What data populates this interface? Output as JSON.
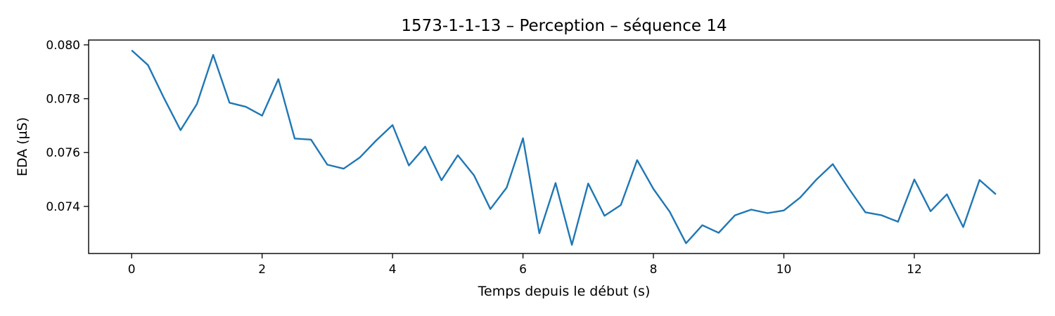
{
  "chart_data": {
    "type": "line",
    "title": "1573-1-1-13 – Perception – séquence 14",
    "xlabel": "Temps depuis le début (s)",
    "ylabel": "EDA (µS)",
    "xlim": [
      -0.66,
      13.92
    ],
    "ylim": [
      0.07225,
      0.08018
    ],
    "xticks": [
      0,
      2,
      4,
      6,
      8,
      10,
      12
    ],
    "yticks": [
      0.074,
      0.076,
      0.078,
      0.08
    ],
    "ytick_labels": [
      "0.074",
      "0.076",
      "0.078",
      "0.080"
    ],
    "grid": false,
    "line_color": "#1f77b4",
    "series": [
      {
        "x": [
          0,
          0.25,
          0.5,
          0.75,
          1.0,
          1.25,
          1.5,
          1.75,
          2.0,
          2.25,
          2.5,
          2.75,
          3.0,
          3.25,
          3.5,
          3.75,
          4.0,
          4.25,
          4.5,
          4.75,
          5.0,
          5.25,
          5.5,
          5.75,
          6.0,
          6.25,
          6.5,
          6.75,
          7.0,
          7.25,
          7.5,
          7.75,
          8.0,
          8.25,
          8.5,
          8.75,
          9.0,
          9.25,
          9.5,
          9.75,
          10.0,
          10.25,
          10.5,
          10.75,
          11.0,
          11.25,
          11.5,
          11.75,
          12.0,
          12.25,
          12.5,
          12.75,
          13.0,
          13.25
        ],
        "values": [
          0.0798,
          0.07925,
          0.078,
          0.07683,
          0.0778,
          0.07963,
          0.07785,
          0.0777,
          0.07737,
          0.07873,
          0.07652,
          0.07648,
          0.07555,
          0.0754,
          0.07582,
          0.07645,
          0.07702,
          0.07552,
          0.07622,
          0.07497,
          0.0759,
          0.07515,
          0.0739,
          0.0747,
          0.07653,
          0.073,
          0.07487,
          0.07257,
          0.07485,
          0.07365,
          0.07405,
          0.07572,
          0.07465,
          0.0738,
          0.07263,
          0.0733,
          0.07302,
          0.07367,
          0.07388,
          0.07375,
          0.07385,
          0.07433,
          0.075,
          0.07557,
          0.07465,
          0.07378,
          0.07367,
          0.07343,
          0.075,
          0.07382,
          0.07445,
          0.07323,
          0.07498,
          0.07445
        ]
      }
    ]
  }
}
